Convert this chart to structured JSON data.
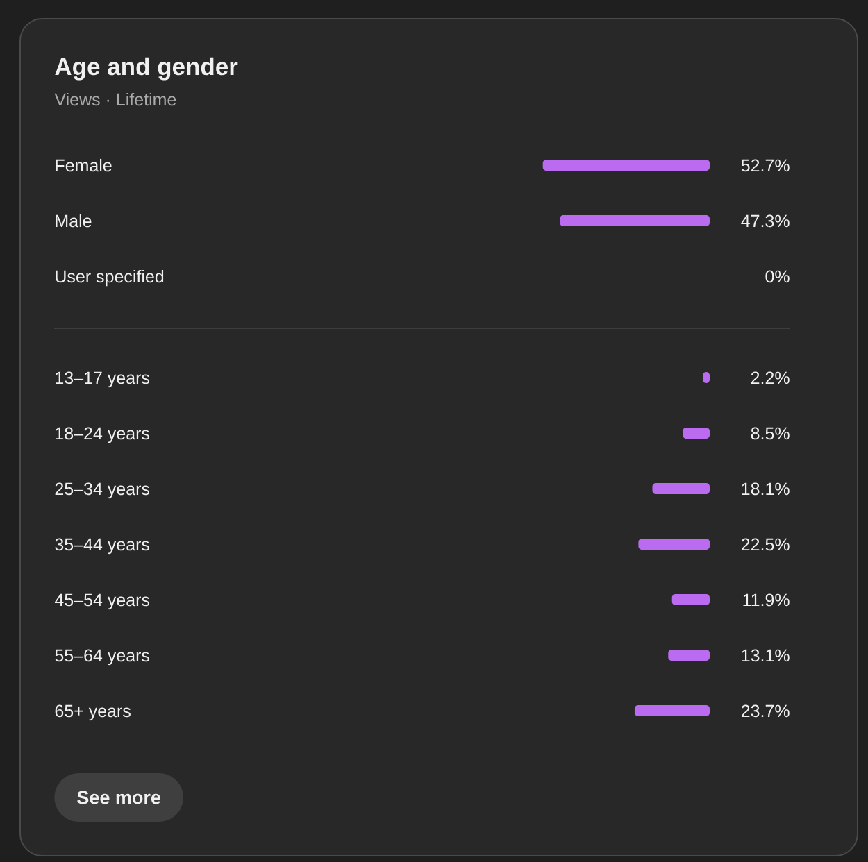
{
  "chart_data": [
    {
      "type": "bar",
      "orientation": "horizontal",
      "title": "Age and gender",
      "subtitle": "Views · Lifetime",
      "categories": [
        "Female",
        "Male",
        "User specified"
      ],
      "values": [
        52.7,
        47.3,
        0
      ],
      "value_labels": [
        "52.7%",
        "47.3%",
        "0%"
      ],
      "color": "#bb6bf0",
      "tick_labels": "y"
    },
    {
      "type": "bar",
      "orientation": "horizontal",
      "categories": [
        "13–17 years",
        "18–24 years",
        "25–34 years",
        "35–44 years",
        "45–54 years",
        "55–64 years",
        "65+ years"
      ],
      "values": [
        2.2,
        8.5,
        18.1,
        22.5,
        11.9,
        13.1,
        23.7
      ],
      "value_labels": [
        "2.2%",
        "8.5%",
        "18.1%",
        "22.5%",
        "11.9%",
        "13.1%",
        "23.7%"
      ],
      "color": "#bb6bf0",
      "tick_labels": "y",
      "annotations": [
        "See more"
      ]
    }
  ]
}
